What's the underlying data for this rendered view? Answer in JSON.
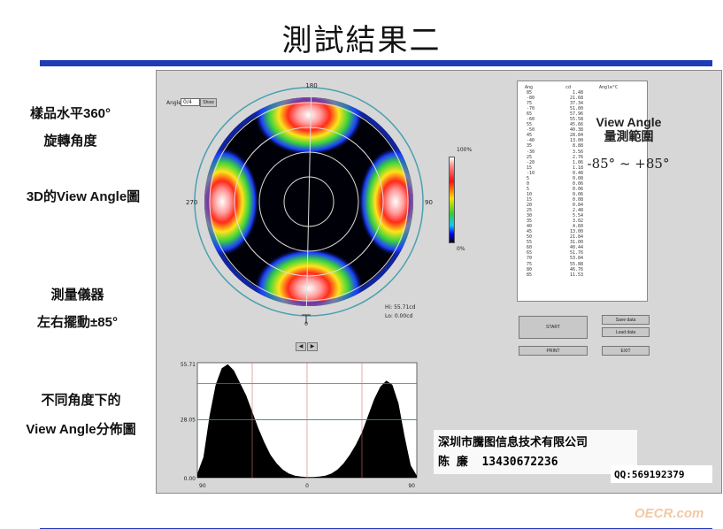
{
  "slide": {
    "title": "測試結果二",
    "left_labels": {
      "rotation_line1": "樣品水平360°",
      "rotation_line2": "旋轉角度",
      "three_d": "3D的View Angle圖",
      "instrument_line1": "測量儀器",
      "instrument_line2": "左右擺動±85°",
      "distribution_line1": "不同角度下的",
      "distribution_line2": "View Angle分佈圖"
    },
    "view_angle": {
      "title_line1": "View Angle",
      "title_line2": "量測範圍",
      "range": "-85° ~ +85°"
    },
    "company": {
      "name": "深圳市騰图信息技术有限公司",
      "contact": "陈 廉  13430672236",
      "qq": "QQ:569192379"
    },
    "watermark": "OECR.com"
  },
  "software": {
    "angle_label": "Angle",
    "angle_value": "0/4",
    "show_button": "Show",
    "polar_top": "180",
    "polar_left": "270",
    "polar_right": "90",
    "polar_bottom": "0",
    "max_readout": "Hi: 55.71cd",
    "min_readout": "Lo: 0.00cd",
    "colorbar_top": "100%",
    "colorbar_bottom": "0%",
    "start_button": "START",
    "save_data_button": "Save data",
    "load_data_button": "Load data",
    "print_button": "PRINT",
    "exit_button": "EXIT",
    "prev_arrow": "◀",
    "next_arrow": "▶",
    "plot_ymax": "55.71",
    "plot_ymid": "28.05",
    "plot_ymin": "0.00",
    "plot_x_left": "90",
    "plot_x_mid": "0",
    "plot_x_right": "90",
    "table": {
      "headers": [
        "Ang",
        "cd",
        "Angle°C"
      ],
      "angles": [
        "85",
        "-80",
        "75",
        "-70",
        "65",
        "-60",
        "55",
        "-50",
        "45",
        "-40",
        "35",
        "-30",
        "25",
        "-20",
        "15",
        "-10",
        "5",
        "0",
        "5",
        "10",
        "15",
        "20",
        "25",
        "30",
        "35",
        "40",
        "45",
        "50",
        "55",
        "60",
        "65",
        "70",
        "75",
        "80",
        "85"
      ],
      "values": [
        "1.48",
        "21.68",
        "37.34",
        "51.00",
        "57.96",
        "55.58",
        "45.66",
        "40.38",
        "28.84",
        "13.00",
        "8.88",
        "3.56",
        "2.76",
        "1.06",
        "1.18",
        "0.48",
        "0.08",
        "0.06",
        "0.06",
        "0.06",
        "0.08",
        "0.84",
        "2.48",
        "5.54",
        "3.02",
        "4.60",
        "13.00",
        "21.84",
        "31.00",
        "40.44",
        "51.76",
        "53.84",
        "55.88",
        "46.76",
        "11.53"
      ]
    }
  },
  "chart_data": {
    "type": "area",
    "title": "",
    "xlabel": "",
    "ylabel": "",
    "x_tick_labels": [
      "90",
      "0",
      "90"
    ],
    "y_tick_labels": [
      "0.00",
      "28.05",
      "55.71"
    ],
    "ylim": [
      0,
      55.71
    ],
    "x": [
      -90,
      -85,
      -80,
      -75,
      -70,
      -65,
      -60,
      -55,
      -50,
      -45,
      -40,
      -35,
      -30,
      -25,
      -20,
      -15,
      -10,
      -5,
      0,
      5,
      10,
      15,
      20,
      25,
      30,
      35,
      40,
      45,
      50,
      55,
      60,
      65,
      70,
      75,
      80,
      85,
      90
    ],
    "values": [
      2,
      10,
      30,
      45,
      53,
      55,
      52,
      46,
      40,
      32,
      24,
      17,
      11,
      7,
      4,
      2,
      1,
      0.5,
      0.3,
      0.3,
      0.5,
      1,
      2,
      4,
      7,
      11,
      16,
      22,
      30,
      38,
      44,
      47,
      45,
      36,
      20,
      6,
      1
    ],
    "grid": true
  }
}
